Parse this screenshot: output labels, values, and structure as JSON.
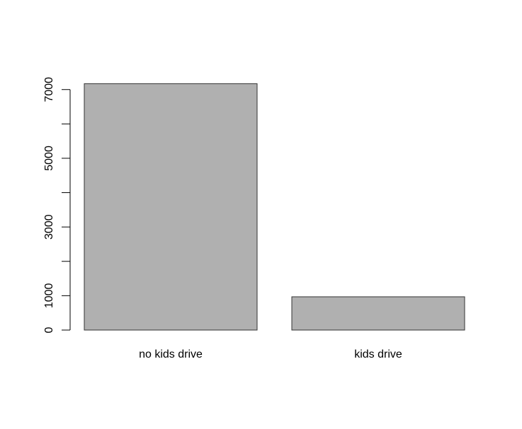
{
  "chart_data": {
    "type": "bar",
    "categories": [
      "no kids drive",
      "kids drive"
    ],
    "values": [
      7172,
      968
    ],
    "title": "",
    "xlabel": "",
    "ylabel": "",
    "ylim": [
      0,
      7200
    ],
    "yticks": [
      0,
      1000,
      2000,
      3000,
      4000,
      5000,
      6000,
      7000
    ],
    "ytick_labels": [
      "0",
      "1000",
      "",
      "3000",
      "",
      "5000",
      "",
      "7000"
    ],
    "grid": false,
    "bar_color": "#b0b0b0",
    "bar_edge_color": "#333333"
  }
}
